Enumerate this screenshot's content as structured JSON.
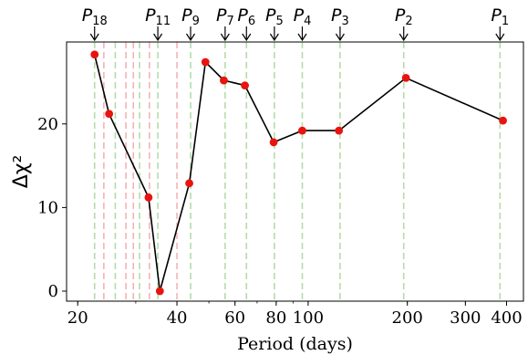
{
  "chart_data": {
    "type": "line",
    "xlabel": "Period (days)",
    "ylabel": "Δχ²",
    "x_scale": "log",
    "xlim": [
      18.5,
      450
    ],
    "ylim": [
      -1.2,
      29.8
    ],
    "xticks": [
      {
        "value": 20,
        "label": "20"
      },
      {
        "value": 40,
        "label": "40"
      },
      {
        "value": 60,
        "label": "60"
      },
      {
        "value": 80,
        "label": "80"
      },
      {
        "value": 100,
        "label": "100"
      },
      {
        "value": 200,
        "label": "200"
      },
      {
        "value": 300,
        "label": "300"
      },
      {
        "value": 400,
        "label": "400"
      }
    ],
    "yticks": [
      {
        "value": 0,
        "label": "0"
      },
      {
        "value": 10,
        "label": "10"
      },
      {
        "value": 20,
        "label": "20"
      }
    ],
    "series": [
      {
        "color": "#000000",
        "marker_color": "#e8140f",
        "x": [
          22.5,
          24.9,
          32.8,
          35.5,
          43.6,
          48.8,
          55.5,
          64.3,
          78.6,
          96.0,
          124.0,
          198.0,
          390.0
        ],
        "y": [
          28.3,
          21.2,
          11.2,
          0.0,
          12.9,
          27.4,
          25.2,
          24.6,
          17.8,
          19.2,
          19.2,
          25.5,
          20.4
        ]
      }
    ],
    "green_lines": [
      22.5,
      26.0,
      30.8,
      35.0,
      44.0,
      56.0,
      65.0,
      79.0,
      96.0,
      125.0,
      195.0,
      382.0
    ],
    "red_lines": [
      24.0,
      28.0,
      29.5,
      33.0,
      40.0
    ],
    "line_colors": {
      "green": "#b5dcaa",
      "red": "#f6b2b5"
    },
    "annotations": [
      {
        "base": "P",
        "sub": "18",
        "x": 22.5
      },
      {
        "base": "P",
        "sub": "11",
        "x": 35.0
      },
      {
        "base": "P",
        "sub": "9",
        "x": 44.0
      },
      {
        "base": "P",
        "sub": "7",
        "x": 56.0
      },
      {
        "base": "P",
        "sub": "6",
        "x": 65.0
      },
      {
        "base": "P",
        "sub": "5",
        "x": 79.0
      },
      {
        "base": "P",
        "sub": "4",
        "x": 96.0
      },
      {
        "base": "P",
        "sub": "3",
        "x": 125.0
      },
      {
        "base": "P",
        "sub": "2",
        "x": 195.0
      },
      {
        "base": "P",
        "sub": "1",
        "x": 382.0
      }
    ],
    "grid": false,
    "legend": "none"
  }
}
